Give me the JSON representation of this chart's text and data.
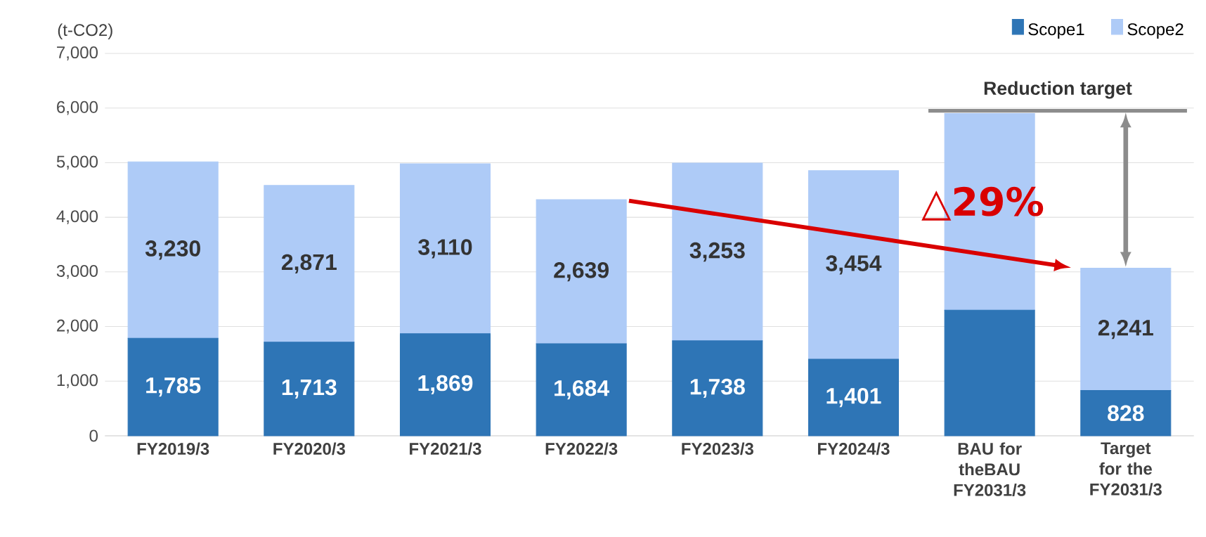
{
  "chart_data": {
    "type": "bar",
    "stacked": true,
    "ylabel": "(t-CO2)",
    "categories": [
      "FY2019/3",
      "FY2020/3",
      "FY2021/3",
      "FY2022/3",
      "FY2023/3",
      "FY2024/3",
      "BAU for theBAU FY2031/3",
      "Target for the FY2031/3"
    ],
    "series": [
      {
        "name": "Scope1",
        "color": "#2e75b6",
        "values": [
          1785,
          1713,
          1869,
          1684,
          1738,
          1401,
          2300,
          828
        ],
        "value_labels": [
          "1,785",
          "1,713",
          "1,869",
          "1,684",
          "1,738",
          "1,401",
          null,
          "828"
        ]
      },
      {
        "name": "Scope2",
        "color": "#aecbf7",
        "values": [
          3230,
          2871,
          3110,
          2639,
          3253,
          3454,
          3600,
          2241
        ],
        "value_labels": [
          "3,230",
          "2,871",
          "3,110",
          "2,639",
          "3,253",
          "3,454",
          null,
          "2,241"
        ]
      }
    ],
    "ylim": [
      0,
      7000
    ],
    "yticks": [
      0,
      {
        "value": 1000,
        "label": "1,000"
      },
      {
        "value": 2000,
        "label": "2,000"
      },
      {
        "value": 3000,
        "label": "3,000"
      },
      {
        "value": 4000,
        "label": "4,000"
      },
      {
        "value": 5000,
        "label": "5,000"
      },
      {
        "value": 6000,
        "label": "6,000"
      },
      {
        "value": 7000,
        "label": "7,000"
      }
    ],
    "grid": "y",
    "legend": "top right",
    "ref_lines": [
      {
        "axis": "y",
        "value": 5950,
        "label": "Reduction target",
        "color": "#8c8c8c"
      }
    ],
    "annotations": [
      "△29%"
    ]
  }
}
